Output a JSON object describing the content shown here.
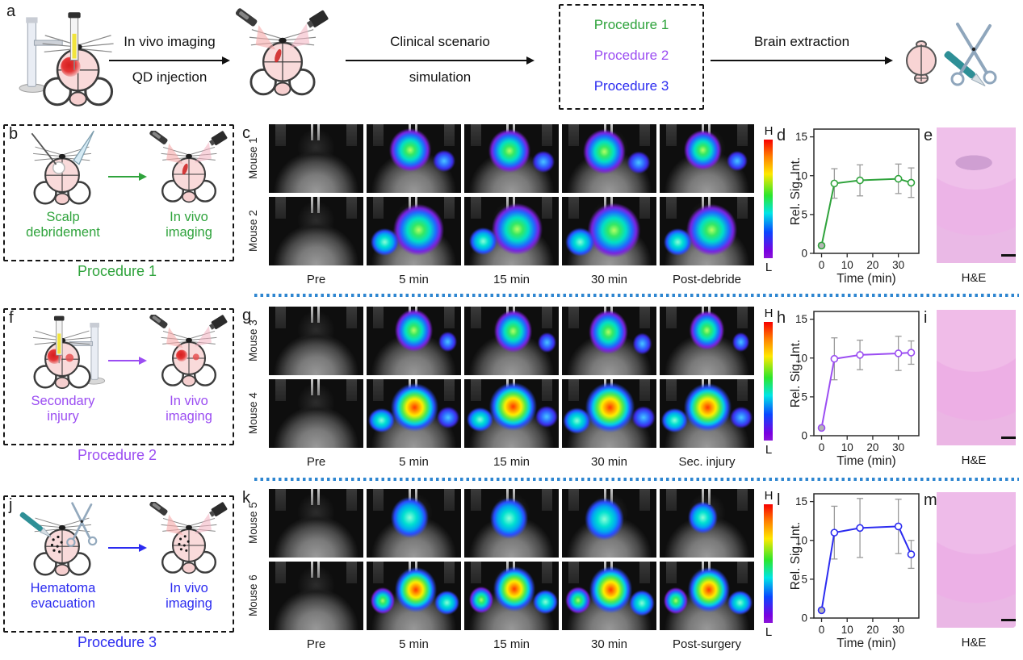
{
  "figure": {
    "panel_a": {
      "label": "a",
      "step1_caption_top": "In vivo imaging",
      "step1_caption_bottom": "QD injection",
      "step2_caption_top": "Clinical scenario",
      "step2_caption_bottom": "simulation",
      "procedure_box": {
        "procedure1": "Procedure 1",
        "procedure2": "Procedure 2",
        "procedure3": "Procedure 3"
      },
      "step3_caption": "Brain extraction"
    },
    "colors": {
      "procedure1_green": "#2fa33c",
      "procedure2_purple": "#9b4df2",
      "procedure3_blue": "#2b2bf0",
      "separator_blue": "#2e86d0",
      "colorbar": [
        "#f70000",
        "#ffe800",
        "#2ce62c",
        "#00e5e5",
        "#0a46ff",
        "#8a14d8"
      ]
    },
    "rows": [
      {
        "box_label": "b",
        "step1": "Scalp debridement",
        "step2": "In vivo imaging",
        "procedure": "Procedure 1",
        "img_label": "c",
        "mice": [
          "Mouse 1",
          "Mouse 2"
        ],
        "timepoints": [
          "Pre",
          "5 min",
          "15 min",
          "30 min",
          "Post-debride"
        ],
        "colorbar_high": "H",
        "colorbar_low": "L",
        "chart_label": "d",
        "hne_label": "e",
        "hne_caption": "H&E"
      },
      {
        "box_label": "f",
        "step1": "Secondary injury",
        "step2": "In vivo imaging",
        "procedure": "Procedure 2",
        "img_label": "g",
        "mice": [
          "Mouse 3",
          "Mouse 4"
        ],
        "timepoints": [
          "Pre",
          "5 min",
          "15 min",
          "30 min",
          "Sec. injury"
        ],
        "colorbar_high": "H",
        "colorbar_low": "L",
        "chart_label": "h",
        "hne_label": "i",
        "hne_caption": "H&E"
      },
      {
        "box_label": "j",
        "step1": "Hematoma evacuation",
        "step2": "In vivo imaging",
        "procedure": "Procedure 3",
        "img_label": "k",
        "mice": [
          "Mouse 5",
          "Mouse 6"
        ],
        "timepoints": [
          "Pre",
          "5 min",
          "15 min",
          "30 min",
          "Post-surgery"
        ],
        "colorbar_high": "H",
        "colorbar_low": "L",
        "chart_label": "l",
        "hne_label": "m",
        "hne_caption": "H&E"
      }
    ]
  },
  "chart_data": [
    {
      "type": "line",
      "panel": "d",
      "color": "#2fa33c",
      "x": [
        0,
        5,
        15,
        30,
        35
      ],
      "y": [
        1.0,
        9.0,
        9.4,
        9.6,
        9.1
      ],
      "yerr": [
        0.3,
        1.9,
        2.0,
        1.9,
        1.9
      ],
      "xlabel": "Time (min)",
      "ylabel": "Rel. Sig. Int.",
      "xticks": [
        0,
        10,
        20,
        30
      ],
      "yticks": [
        0,
        5,
        10,
        15
      ],
      "xlim": [
        -3,
        38
      ],
      "ylim": [
        0,
        16
      ],
      "marker": "open-circle",
      "errorbar_color": "#9b9b9b",
      "grid": false,
      "legend": "none"
    },
    {
      "type": "line",
      "panel": "h",
      "color": "#9b4df2",
      "x": [
        0,
        5,
        15,
        30,
        35
      ],
      "y": [
        1.0,
        9.9,
        10.4,
        10.6,
        10.7
      ],
      "yerr": [
        0.2,
        2.7,
        1.9,
        2.2,
        1.5
      ],
      "xlabel": "Time (min)",
      "ylabel": "Rel. Sig. Int.",
      "xticks": [
        0,
        10,
        20,
        30
      ],
      "yticks": [
        0,
        5,
        10,
        15
      ],
      "xlim": [
        -3,
        38
      ],
      "ylim": [
        0,
        16
      ],
      "marker": "open-circle",
      "errorbar_color": "#9b9b9b",
      "grid": false,
      "legend": "none"
    },
    {
      "type": "line",
      "panel": "l",
      "color": "#2b2bf0",
      "x": [
        0,
        5,
        15,
        30,
        35
      ],
      "y": [
        1.0,
        11.0,
        11.6,
        11.8,
        8.2
      ],
      "yerr": [
        0.2,
        3.4,
        3.8,
        3.5,
        1.8
      ],
      "xlabel": "Time (min)",
      "ylabel": "Rel. Sig. Int.",
      "xticks": [
        0,
        10,
        20,
        30
      ],
      "yticks": [
        0,
        5,
        10,
        15
      ],
      "xlim": [
        -3,
        38
      ],
      "ylim": [
        0,
        16
      ],
      "marker": "open-circle",
      "errorbar_color": "#9b9b9b",
      "grid": false,
      "legend": "none"
    }
  ]
}
